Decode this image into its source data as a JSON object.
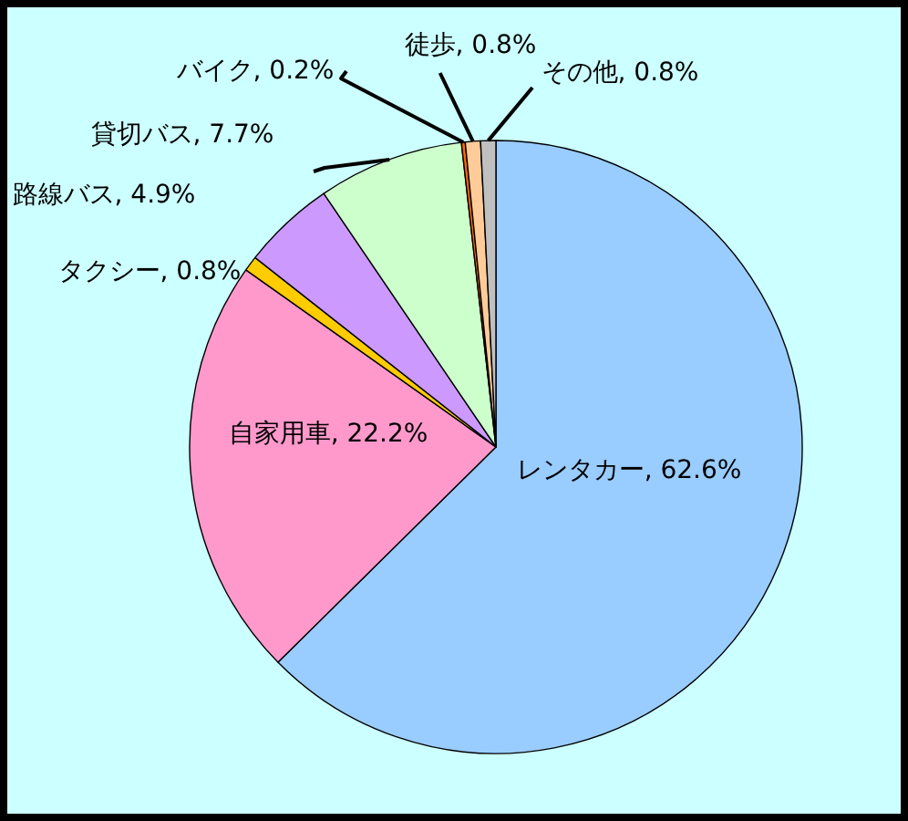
{
  "chart_data": {
    "type": "pie",
    "categories": [
      "レンタカー",
      "自家用車",
      "タクシー",
      "路線バス",
      "貸切バス",
      "バイク",
      "徒歩",
      "その他"
    ],
    "values": [
      62.6,
      22.2,
      0.8,
      4.9,
      7.7,
      0.2,
      0.8,
      0.8
    ],
    "value_labels": [
      "62.6%",
      "22.2%",
      "0.8%",
      "4.9%",
      "7.7%",
      "0.2%",
      "0.8%",
      "0.8%"
    ],
    "colors": [
      "#99ccff",
      "#ff99cc",
      "#ffcc00",
      "#cc99ff",
      "#ccffcc",
      "#ff6600",
      "#ffcc99",
      "#c0c0c0"
    ],
    "legend": false
  }
}
